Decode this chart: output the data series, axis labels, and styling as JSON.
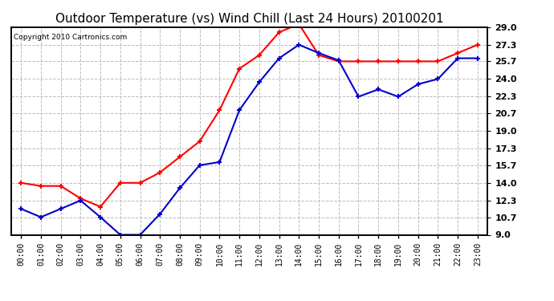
{
  "title": "Outdoor Temperature (vs) Wind Chill (Last 24 Hours) 20100201",
  "copyright": "Copyright 2010 Cartronics.com",
  "hours": [
    "00:00",
    "01:00",
    "02:00",
    "03:00",
    "04:00",
    "05:00",
    "06:00",
    "07:00",
    "08:00",
    "09:00",
    "10:00",
    "11:00",
    "12:00",
    "13:00",
    "14:00",
    "15:00",
    "16:00",
    "17:00",
    "18:00",
    "19:00",
    "20:00",
    "21:00",
    "22:00",
    "23:00"
  ],
  "temp": [
    14.0,
    13.7,
    13.7,
    12.5,
    11.7,
    14.0,
    14.0,
    15.0,
    16.5,
    18.0,
    21.0,
    25.0,
    26.3,
    28.5,
    29.3,
    26.3,
    25.7,
    25.7,
    25.7,
    25.7,
    25.7,
    25.7,
    26.5,
    27.3
  ],
  "windchill": [
    11.5,
    10.7,
    11.5,
    12.3,
    10.7,
    9.0,
    9.0,
    11.0,
    13.5,
    15.7,
    16.0,
    21.0,
    23.7,
    26.0,
    27.3,
    26.5,
    25.8,
    22.3,
    23.0,
    22.3,
    23.5,
    24.0,
    26.0,
    26.0
  ],
  "temp_color": "#FF0000",
  "windchill_color": "#0000CC",
  "ylim_min": 9.0,
  "ylim_max": 29.0,
  "yticks": [
    9.0,
    10.7,
    12.3,
    14.0,
    15.7,
    17.3,
    19.0,
    20.7,
    22.3,
    24.0,
    25.7,
    27.3,
    29.0
  ],
  "background_color": "#FFFFFF",
  "grid_color": "#BBBBBB",
  "title_fontsize": 11,
  "copyright_fontsize": 6.5
}
